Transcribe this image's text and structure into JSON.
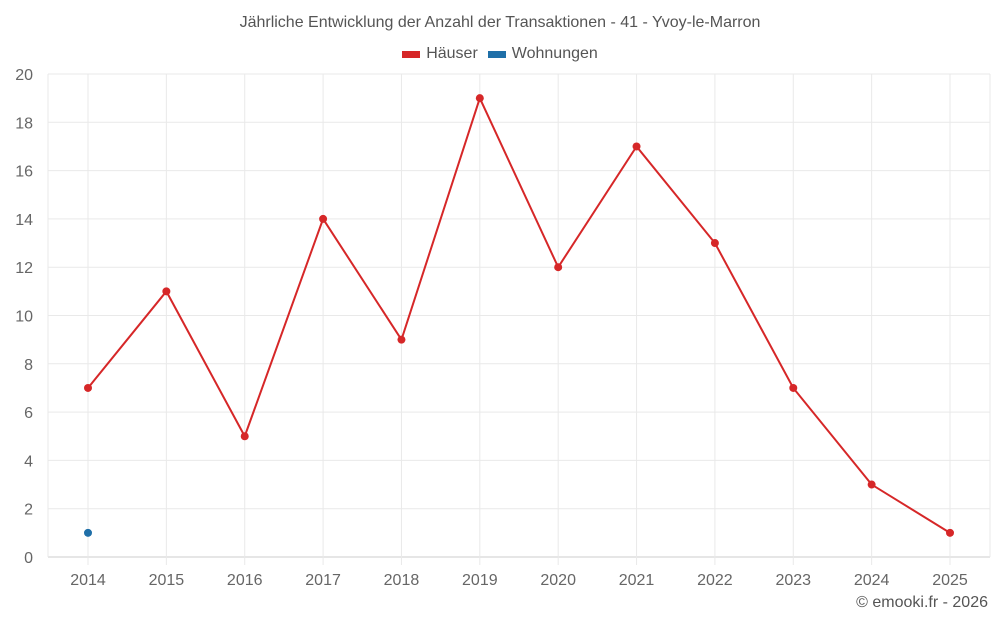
{
  "chart": {
    "title": "Jährliche Entwicklung der Anzahl der Transaktionen - 41 - Yvoy-le-Marron",
    "credit": "© emooki.fr - 2026",
    "legend": [
      {
        "label": "Häuser",
        "color": "#d62728"
      },
      {
        "label": "Wohnungen",
        "color": "#1f6fa8"
      }
    ]
  },
  "chart_data": {
    "type": "line",
    "title": "Jährliche Entwicklung der Anzahl der Transaktionen - 41 - Yvoy-le-Marron",
    "xlabel": "",
    "ylabel": "",
    "categories": [
      "2014",
      "2015",
      "2016",
      "2017",
      "2018",
      "2019",
      "2020",
      "2021",
      "2022",
      "2023",
      "2024",
      "2025"
    ],
    "series": [
      {
        "name": "Häuser",
        "color": "#d62728",
        "values": [
          7,
          11,
          5,
          14,
          9,
          19,
          12,
          17,
          13,
          7,
          3,
          1
        ]
      },
      {
        "name": "Wohnungen",
        "color": "#1f6fa8",
        "values": [
          1,
          null,
          null,
          null,
          null,
          null,
          null,
          null,
          null,
          null,
          null,
          null
        ]
      }
    ],
    "ylim": [
      0,
      20
    ],
    "yticks": [
      0,
      2,
      4,
      6,
      8,
      10,
      12,
      14,
      16,
      18,
      20
    ],
    "grid": true,
    "legend_position": "top"
  }
}
